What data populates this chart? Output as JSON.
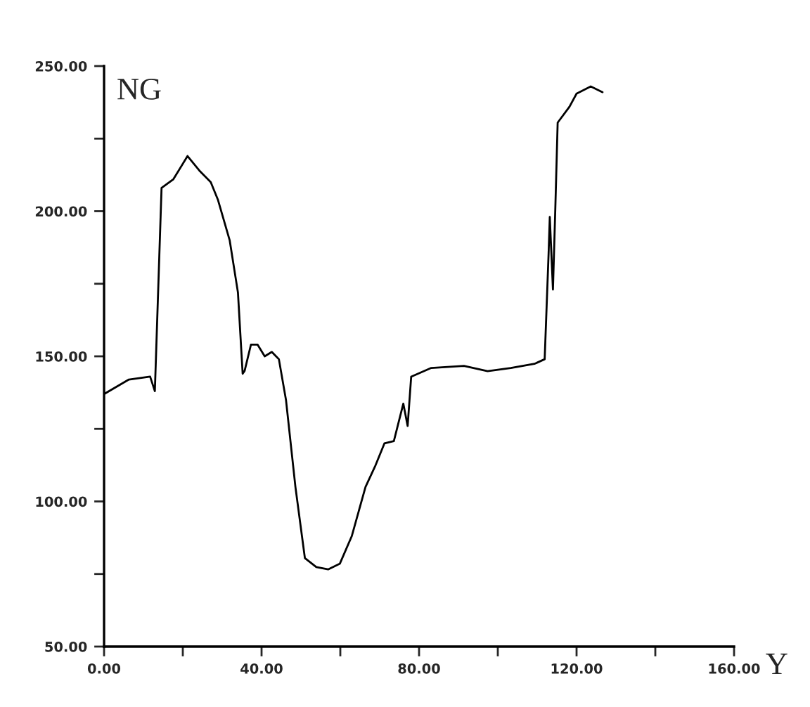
{
  "chart_data": {
    "type": "line",
    "xlabel": "Y",
    "ylabel": "NG",
    "x": [
      0,
      6.3,
      11.7,
      12.9,
      14.6,
      17.6,
      21.2,
      24.2,
      27.1,
      28.9,
      31.9,
      34.0,
      35.2,
      35.7,
      37.3,
      39.0,
      40.8,
      42.6,
      44.4,
      46.2,
      48.6,
      51.0,
      53.9,
      56.9,
      59.9,
      62.9,
      66.4,
      68.8,
      71.2,
      73.6,
      76.0,
      77.1,
      78.0,
      83.1,
      91.4,
      97.4,
      103.3,
      109.3,
      111.9,
      112.9,
      113.2,
      114.0,
      114.6,
      115.2,
      118.2,
      120,
      123.6,
      126.6
    ],
    "series": [
      {
        "color": "#000000",
        "values": [
          137,
          142,
          143,
          138,
          208,
          211,
          219,
          214,
          210,
          204,
          190,
          172,
          144,
          145,
          154,
          154,
          150,
          151.5,
          149,
          135,
          105,
          80.5,
          77.4,
          76.6,
          78.6,
          88,
          105,
          112,
          120,
          120.8,
          133.7,
          126,
          143,
          146,
          146.7,
          144.9,
          146,
          147.4,
          149,
          185.5,
          198,
          173,
          200.7,
          230.5,
          236,
          240.5,
          243,
          241
        ]
      }
    ],
    "xlim": [
      0,
      160
    ],
    "ylim": [
      50,
      250
    ],
    "xticks": [
      {
        "value": 0,
        "label": "0.00"
      },
      {
        "value": 20,
        "label": null
      },
      {
        "value": 40,
        "label": "40.00"
      },
      {
        "value": 60,
        "label": null
      },
      {
        "value": 80,
        "label": "80.00"
      },
      {
        "value": 100,
        "label": null
      },
      {
        "value": 120,
        "label": "120.00"
      },
      {
        "value": 140,
        "label": null
      },
      {
        "value": 160,
        "label": "160.00"
      }
    ],
    "yticks": [
      {
        "value": 50,
        "label": "50.00"
      },
      {
        "value": 75,
        "label": null
      },
      {
        "value": 100,
        "label": "100.00"
      },
      {
        "value": 125,
        "label": null
      },
      {
        "value": 150,
        "label": "150.00"
      },
      {
        "value": 175,
        "label": null
      },
      {
        "value": 200,
        "label": "200.00"
      },
      {
        "value": 225,
        "label": null
      },
      {
        "value": 250,
        "label": "250.00"
      }
    ],
    "grid": false,
    "legend": false
  }
}
